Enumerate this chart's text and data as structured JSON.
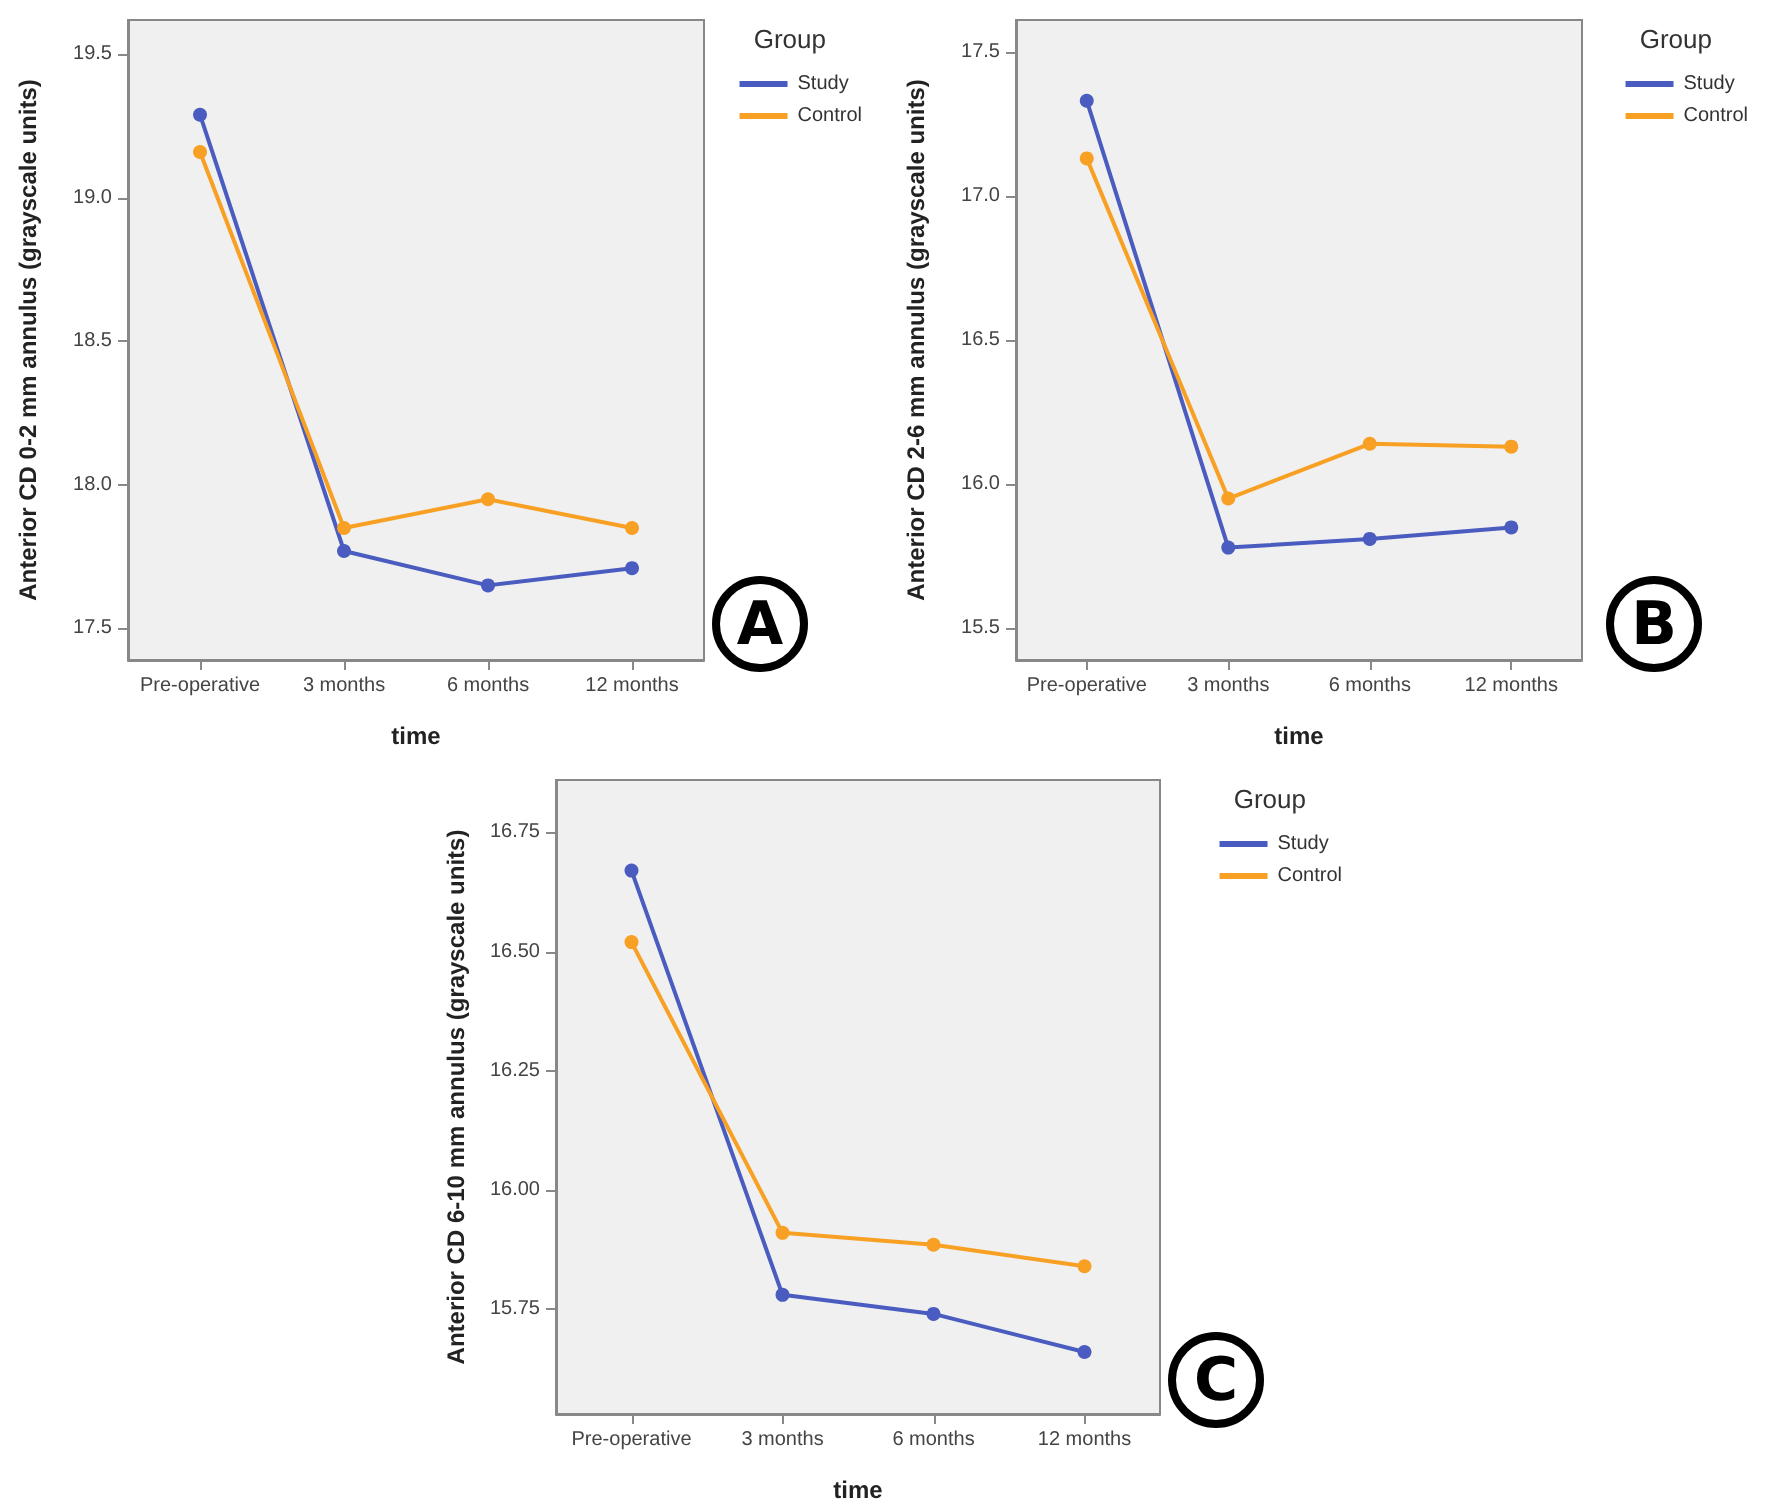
{
  "chart_data": [
    {
      "type": "line",
      "xlabel": "time",
      "ylabel": "Anterior CD 0-2 mm annulus (grayscale units)",
      "legend_title": "Group",
      "annotations": [
        "A"
      ],
      "categories": [
        "Pre-operative",
        "3 months",
        "6 months",
        "12 months"
      ],
      "series": [
        {
          "name": "Study",
          "color": "#4a5cbf",
          "values": [
            19.29,
            17.77,
            17.65,
            17.71
          ]
        },
        {
          "name": "Control",
          "color": "#f7a024",
          "values": [
            19.16,
            17.85,
            17.95,
            17.85
          ]
        }
      ],
      "ylim": [
        17.39,
        19.62
      ],
      "yticks": [
        17.5,
        {
          "value": 18,
          "label": "18.0"
        },
        18.5,
        {
          "value": 19,
          "label": "19.0"
        },
        19.5
      ],
      "grid": false,
      "legend": "top right",
      "marker": "circle",
      "line_style": "solid"
    },
    {
      "type": "line",
      "xlabel": "time",
      "ylabel": "Anterior CD 2-6 mm annulus (grayscale units)",
      "legend_title": "Group",
      "annotations": [
        "B"
      ],
      "categories": [
        "Pre-operative",
        "3 months",
        "6 months",
        "12 months"
      ],
      "series": [
        {
          "name": "Study",
          "color": "#4a5cbf",
          "values": [
            17.33,
            15.78,
            15.81,
            15.85
          ]
        },
        {
          "name": "Control",
          "color": "#f7a024",
          "values": [
            17.13,
            15.95,
            16.14,
            16.13
          ]
        }
      ],
      "ylim": [
        15.39,
        17.61
      ],
      "yticks": [
        15.5,
        {
          "value": 16,
          "label": "16.0"
        },
        16.5,
        {
          "value": 17,
          "label": "17.0"
        },
        17.5
      ],
      "grid": false,
      "legend": "top right",
      "marker": "circle",
      "line_style": "solid"
    },
    {
      "type": "line",
      "xlabel": "time",
      "ylabel": "Anterior CD 6-10 mm annulus (grayscale units)",
      "legend_title": "Group",
      "annotations": [
        "C"
      ],
      "categories": [
        "Pre-operative",
        "3 months",
        "6 months",
        "12 months"
      ],
      "series": [
        {
          "name": "Study",
          "color": "#4a5cbf",
          "values": [
            16.67,
            15.78,
            15.74,
            15.66
          ]
        },
        {
          "name": "Control",
          "color": "#f7a024",
          "values": [
            16.52,
            15.91,
            15.885,
            15.84
          ]
        }
      ],
      "ylim": [
        15.53,
        16.86
      ],
      "yticks": [
        15.75,
        {
          "value": 16,
          "label": "16.00"
        },
        16.25,
        {
          "value": 16.5,
          "label": "16.50"
        },
        16.75
      ],
      "grid": false,
      "legend": "top right",
      "marker": "circle",
      "line_style": "solid"
    }
  ]
}
